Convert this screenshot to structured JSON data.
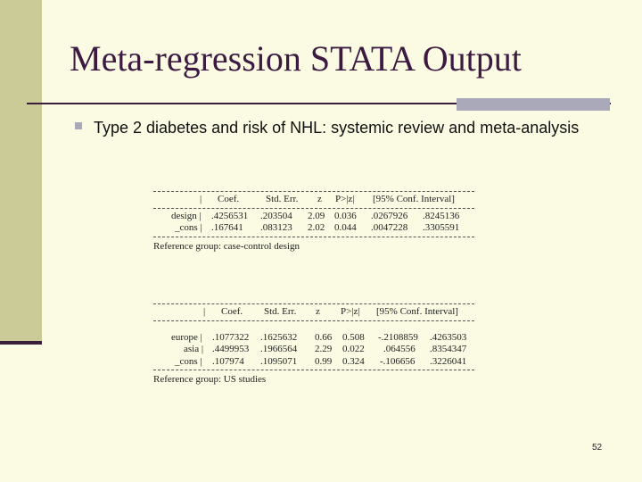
{
  "slide": {
    "title": "Meta-regression STATA Output",
    "bullet": "Type 2 diabetes and risk of NHL: systemic review and meta-analysis",
    "page_number": "52"
  },
  "table1": {
    "headers": [
      "|",
      "Coef.",
      "Std. Err.",
      "z",
      "P>|z|",
      "[95% Conf. Interval]"
    ],
    "rows": [
      [
        "design |",
        ".4256531",
        ".203504",
        "2.09",
        "0.036",
        ".0267926",
        ".8245136"
      ],
      [
        "_cons |",
        ".167641",
        ".083123",
        "2.02",
        "0.044",
        ".0047228",
        ".3305591"
      ]
    ],
    "note": "Reference group: case-control design"
  },
  "table2": {
    "headers": [
      "|",
      "Coef.",
      "Std. Err.",
      "z",
      "P>|z|",
      "[95% Conf. Interval]"
    ],
    "rows": [
      [
        "europe |",
        ".1077322",
        ".1625632",
        "0.66",
        "0.508",
        "-.2108859",
        ".4263503"
      ],
      [
        "asia |",
        ".4499953",
        ".1966564",
        "2.29",
        "0.022",
        ".064556",
        ".8354347"
      ],
      [
        "_cons |",
        ".107974",
        ".1095071",
        "0.99",
        "0.324",
        "-.106656",
        ".3226041"
      ]
    ],
    "note": "Reference group: US studies"
  }
}
